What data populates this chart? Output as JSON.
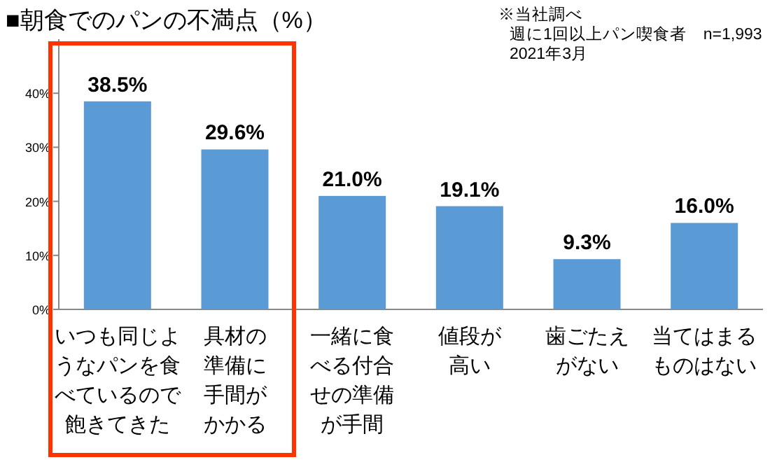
{
  "chart_data": {
    "type": "bar",
    "title": "■朝食でのパンの不満点（%）",
    "categories": [
      "いつも同じようなパンを食べているので飽きてきた",
      "具材の準備に手間がかかる",
      "一緒に食べる付合せの準備が手間",
      "値段が高い",
      "歯ごたえがない",
      "当てはまるものはない"
    ],
    "values": [
      38.5,
      29.6,
      21.0,
      19.1,
      9.3,
      16.0
    ],
    "value_labels": [
      "38.5%",
      "29.6%",
      "21.0%",
      "19.1%",
      "9.3%",
      "16.0%"
    ],
    "color": "#5b9bd5",
    "ylim": [
      0,
      50
    ],
    "yticks": [
      {
        "value": 0,
        "label": "0%"
      },
      {
        "value": 10,
        "label": "10%"
      },
      {
        "value": 20,
        "label": "20%"
      },
      {
        "value": 30,
        "label": "30%"
      },
      {
        "value": 40,
        "label": "40%"
      }
    ],
    "annotations": [
      "※当社調べ",
      "週に1回以上パン喫食者　n=1,993",
      "2021年3月"
    ]
  }
}
